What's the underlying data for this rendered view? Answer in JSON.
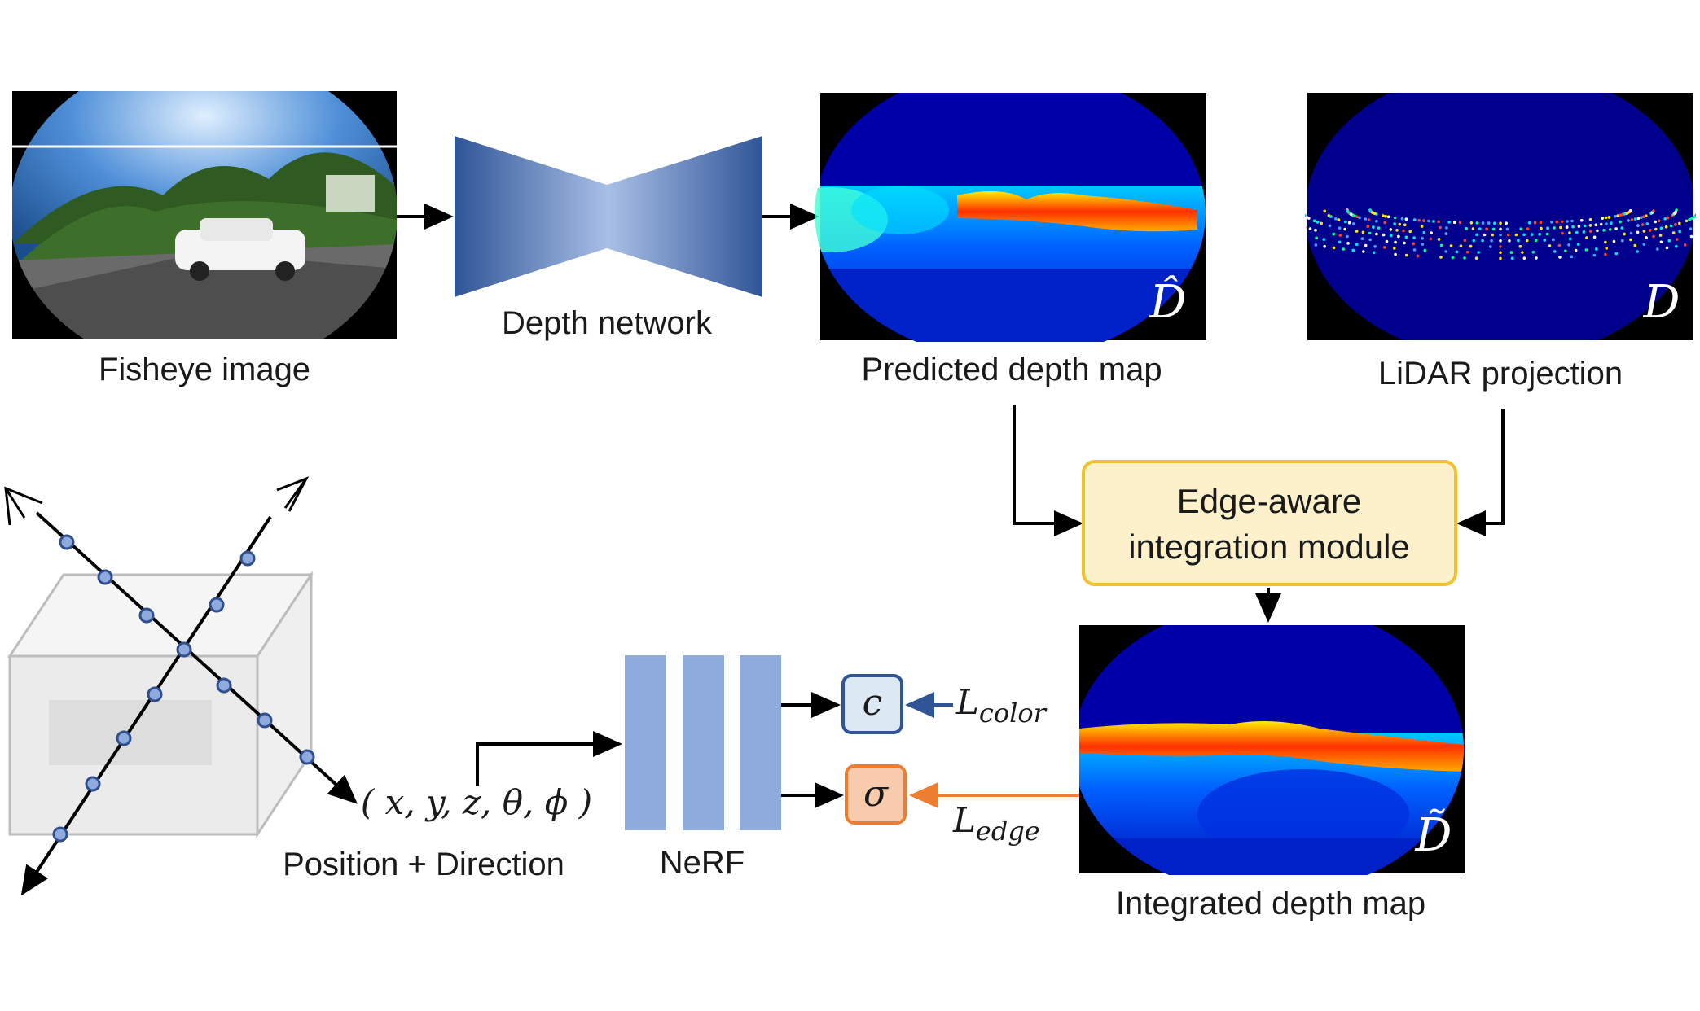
{
  "labels": {
    "fisheye_image": "Fisheye image",
    "depth_network": "Depth network",
    "predicted_depth_map": "Predicted depth map",
    "lidar_projection": "LiDAR projection",
    "module_line1": "Edge-aware",
    "module_line2": "integration module",
    "integrated_depth_map": "Integrated depth map",
    "position_direction": "Position + Direction",
    "coordinates": "( x, y, z, θ, ϕ )",
    "nerf": "NeRF",
    "color_symbol": "c",
    "sigma_symbol": "σ",
    "loss_color_base": "L",
    "loss_color_sub": "color",
    "loss_edge_base": "L",
    "loss_edge_sub": "edge",
    "d_hat": "D̂",
    "d_plain": "D",
    "d_tilde": "D̃"
  },
  "colors": {
    "module_fill": "#fdf1cc",
    "module_border": "#f2c130",
    "color_node_fill": "#dde8f5",
    "color_node_border": "#2f5597",
    "sigma_node_fill": "#f8cbad",
    "sigma_node_border": "#ed7d31",
    "nerf_bar": "#8faadc",
    "depth_bg": "#0000a0",
    "arrow": "#000000"
  }
}
